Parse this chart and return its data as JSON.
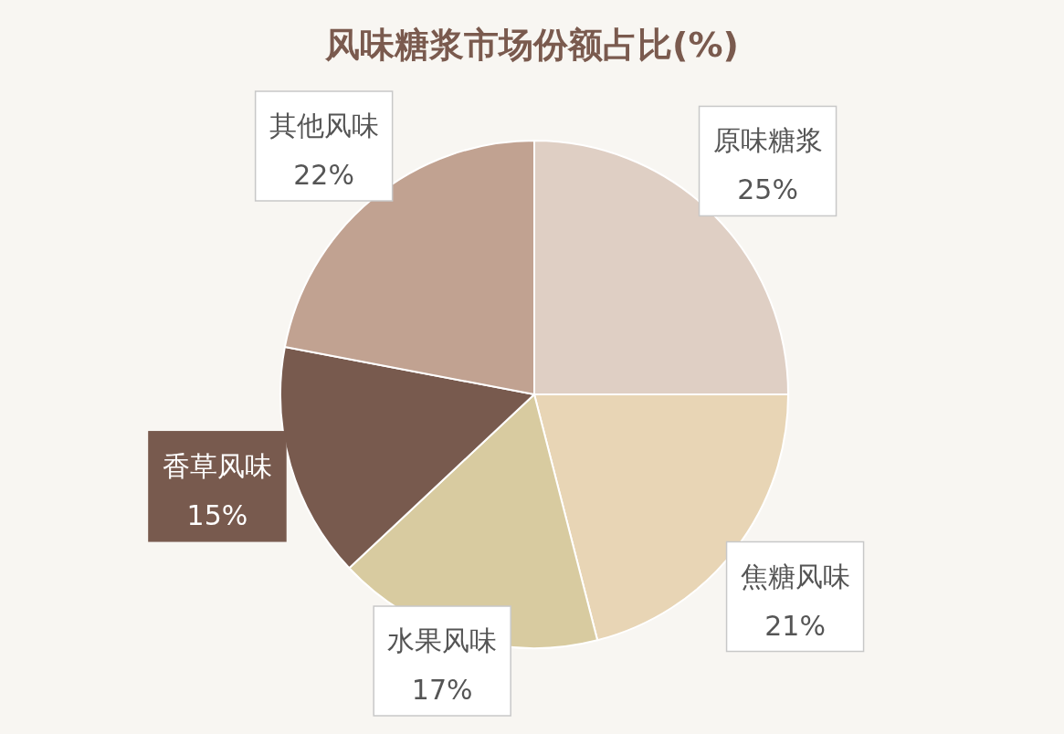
{
  "chart_data": {
    "type": "pie",
    "title": "风味糖浆市场份额占比(%)",
    "categories": [
      "原味糖浆",
      "焦糖风味",
      "水果风味",
      "香草风味",
      "其他风味"
    ],
    "values": [
      25,
      21,
      17,
      15,
      22
    ],
    "value_labels": [
      "25%",
      "21%",
      "17%",
      "15%",
      "22%"
    ],
    "colors": [
      "#dfcfc4",
      "#e8d5b5",
      "#d8cba0",
      "#785a4e",
      "#c1a291"
    ]
  }
}
